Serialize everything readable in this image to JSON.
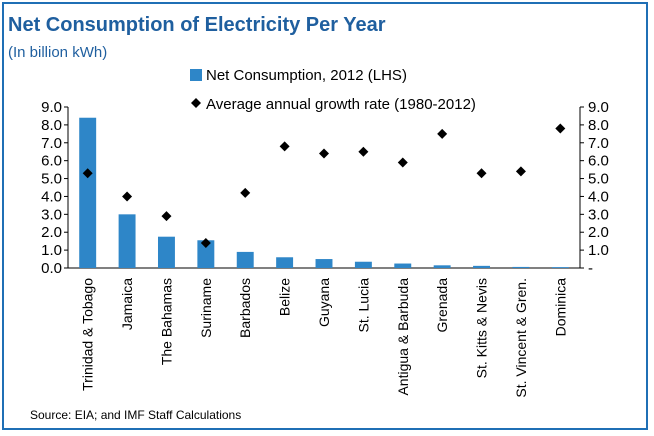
{
  "title": "Net Consumption of Electricity Per Year",
  "subtitle": "(In billion kWh)",
  "source": "Source: EIA; and  IMF Staff Calculations",
  "chart_data": {
    "type": "bar",
    "categories": [
      "Trinidad & Tobago",
      "Jamaica",
      "The Bahamas",
      "Suriname",
      "Barbados",
      "Belize",
      "Guyana",
      "St. Lucia",
      "Antigua & Barbuda",
      "Grenada",
      "St. Kitts & Nevis",
      "St. Vincent & Gren.",
      "Dominica"
    ],
    "series": [
      {
        "name": "Net Consumption, 2012 (LHS)",
        "type": "bar",
        "axis": "left",
        "color": "#2e86c8",
        "values": [
          8.4,
          3.0,
          1.75,
          1.55,
          0.9,
          0.6,
          0.5,
          0.35,
          0.25,
          0.15,
          0.12,
          0.06,
          0.05
        ]
      },
      {
        "name": "Average annual growth rate (1980-2012)",
        "type": "scatter",
        "axis": "right",
        "marker": "diamond",
        "color": "#000000",
        "values": [
          5.3,
          4.0,
          2.9,
          1.4,
          4.2,
          6.8,
          6.4,
          6.5,
          5.9,
          7.5,
          5.3,
          5.4,
          7.8
        ]
      }
    ],
    "ylim": [
      0,
      9
    ],
    "y_ticks_left": [
      "0.0",
      "1.0",
      "2.0",
      "3.0",
      "4.0",
      "5.0",
      "6.0",
      "7.0",
      "8.0",
      "9.0"
    ],
    "y_ticks_right": [
      "-",
      "1.0",
      "2.0",
      "3.0",
      "4.0",
      "5.0",
      "6.0",
      "7.0",
      "8.0",
      "9.0"
    ],
    "legend_position": "top-right",
    "grid": false
  }
}
